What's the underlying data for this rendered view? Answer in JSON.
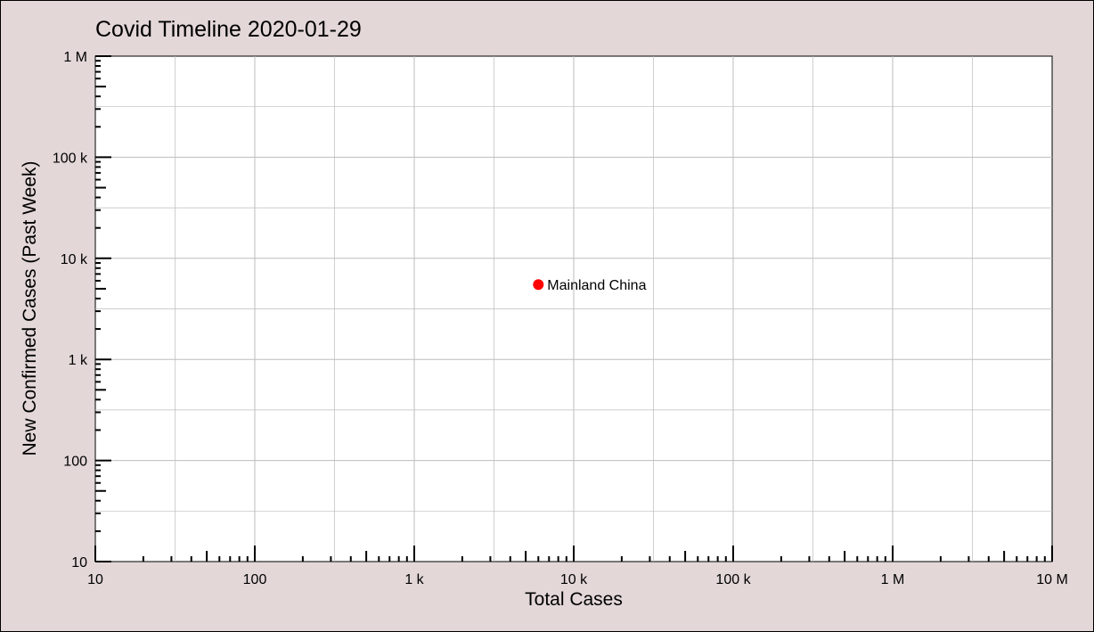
{
  "chart_data": {
    "type": "scatter",
    "title": "Covid Timeline 2020-01-29",
    "xlabel": "Total Cases",
    "ylabel": "New Confirmed Cases (Past Week)",
    "x_scale": "log",
    "y_scale": "log",
    "xlim": [
      10,
      10000000
    ],
    "ylim": [
      10,
      1000000
    ],
    "grid": true,
    "x_ticks": [
      {
        "value": 10,
        "label": "10"
      },
      {
        "value": 100,
        "label": "100"
      },
      {
        "value": 1000,
        "label": "1 k"
      },
      {
        "value": 10000,
        "label": "10 k"
      },
      {
        "value": 100000,
        "label": "100 k"
      },
      {
        "value": 1000000,
        "label": "1 M"
      },
      {
        "value": 10000000,
        "label": "10 M"
      }
    ],
    "y_ticks": [
      {
        "value": 10,
        "label": "10"
      },
      {
        "value": 100,
        "label": "100"
      },
      {
        "value": 1000,
        "label": "1 k"
      },
      {
        "value": 10000,
        "label": "10 k"
      },
      {
        "value": 100000,
        "label": "100 k"
      },
      {
        "value": 1000000,
        "label": "1 M"
      }
    ],
    "points": [
      {
        "label": "Mainland China",
        "x": 6000,
        "y": 5500,
        "color": "#ff0000"
      }
    ]
  },
  "colors": {
    "background": "#e3d7d7",
    "plot_background": "#ffffff",
    "grid": "#bdbdbd",
    "point": "#ff0000"
  }
}
